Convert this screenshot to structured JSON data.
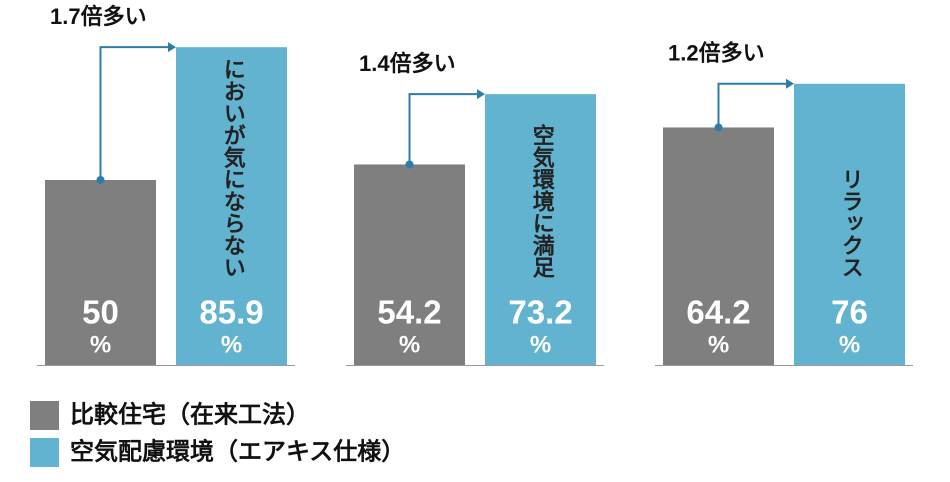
{
  "chart_data": {
    "type": "bar",
    "categories": [
      "においが気にならない",
      "空気環境に満足",
      "リラックス"
    ],
    "series": [
      {
        "name": "比較住宅（在来工法）",
        "color": "#7f7f7f",
        "values": [
          50,
          54.2,
          64.2
        ]
      },
      {
        "name": "空気配慮環境（エアキス仕様）",
        "color": "#62b3cf",
        "values": [
          85.9,
          73.2,
          76
        ]
      }
    ],
    "unit": "%",
    "annotations": [
      "1.7倍多い",
      "1.4倍多い",
      "1.2倍多い"
    ],
    "annotation_color": "#2f7ca6"
  }
}
